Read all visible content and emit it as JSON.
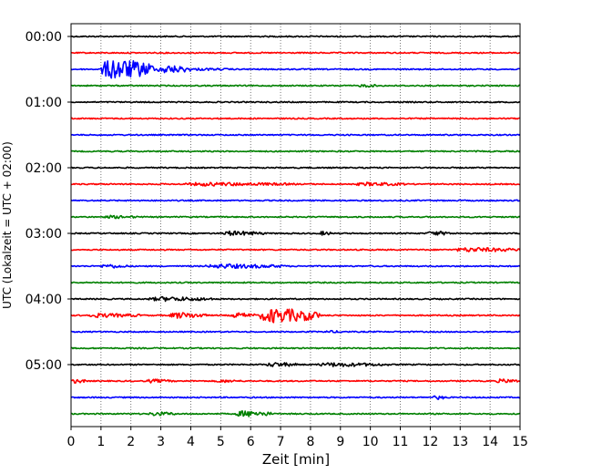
{
  "chart_data": {
    "type": "line",
    "title": "",
    "xlabel": "Zeit  [min]",
    "ylabel": "UTC (Lokalzeit = UTC + 02:00)",
    "xlim": [
      0,
      15
    ],
    "x_ticks": [
      "0",
      "1",
      "2",
      "3",
      "4",
      "5",
      "6",
      "7",
      "8",
      "9",
      "10",
      "11",
      "12",
      "13",
      "14",
      "15"
    ],
    "y_tick_labels": [
      "00:00",
      "01:00",
      "02:00",
      "03:00",
      "04:00",
      "05:00"
    ],
    "grid": "vertical dotted lines at each minute",
    "legend": "none",
    "trace_interval_minutes": 15,
    "trace_colors": [
      "#000000",
      "#ff0000",
      "#0000ff",
      "#008000"
    ],
    "trace_start_times": [
      "00:00",
      "00:15",
      "00:30",
      "00:45",
      "01:00",
      "01:15",
      "01:30",
      "01:45",
      "02:00",
      "02:15",
      "02:30",
      "02:45",
      "03:00",
      "03:15",
      "03:30",
      "03:45",
      "04:00",
      "04:15",
      "04:30",
      "04:45",
      "05:00",
      "05:15",
      "05:30",
      "05:45"
    ],
    "events": [
      {
        "trace": "00:30",
        "start_min": 1.0,
        "end_min": 2.8,
        "amplitude": 1.0
      },
      {
        "trace": "00:30",
        "start_min": 2.9,
        "end_min": 4.0,
        "amplitude": 0.4
      },
      {
        "trace": "00:30",
        "start_min": 4.0,
        "end_min": 5.5,
        "amplitude": 0.12
      },
      {
        "trace": "00:45",
        "start_min": 9.6,
        "end_min": 10.3,
        "amplitude": 0.15
      },
      {
        "trace": "02:15",
        "start_min": 3.7,
        "end_min": 7.5,
        "amplitude": 0.18
      },
      {
        "trace": "02:15",
        "start_min": 9.5,
        "end_min": 11.2,
        "amplitude": 0.18
      },
      {
        "trace": "02:45",
        "start_min": 1.1,
        "end_min": 2.3,
        "amplitude": 0.15
      },
      {
        "trace": "03:00",
        "start_min": 5.0,
        "end_min": 6.5,
        "amplitude": 0.22
      },
      {
        "trace": "03:00",
        "start_min": 8.3,
        "end_min": 8.7,
        "amplitude": 0.2
      },
      {
        "trace": "03:00",
        "start_min": 11.9,
        "end_min": 12.7,
        "amplitude": 0.22
      },
      {
        "trace": "03:15",
        "start_min": 12.8,
        "end_min": 15.0,
        "amplitude": 0.22
      },
      {
        "trace": "03:30",
        "start_min": 1.0,
        "end_min": 1.9,
        "amplitude": 0.2
      },
      {
        "trace": "03:30",
        "start_min": 4.5,
        "end_min": 7.2,
        "amplitude": 0.22
      },
      {
        "trace": "04:00",
        "start_min": 2.6,
        "end_min": 4.8,
        "amplitude": 0.22
      },
      {
        "trace": "04:15",
        "start_min": 0.5,
        "end_min": 2.4,
        "amplitude": 0.2
      },
      {
        "trace": "04:15",
        "start_min": 3.3,
        "end_min": 4.5,
        "amplitude": 0.3
      },
      {
        "trace": "04:15",
        "start_min": 5.3,
        "end_min": 6.2,
        "amplitude": 0.25
      },
      {
        "trace": "04:15",
        "start_min": 6.3,
        "end_min": 8.3,
        "amplitude": 0.7
      },
      {
        "trace": "04:30",
        "start_min": 8.4,
        "end_min": 9.3,
        "amplitude": 0.12
      },
      {
        "trace": "05:00",
        "start_min": 6.5,
        "end_min": 7.6,
        "amplitude": 0.22
      },
      {
        "trace": "05:00",
        "start_min": 8.2,
        "end_min": 10.6,
        "amplitude": 0.2
      },
      {
        "trace": "05:15",
        "start_min": 0.0,
        "end_min": 0.5,
        "amplitude": 0.22
      },
      {
        "trace": "05:15",
        "start_min": 2.5,
        "end_min": 3.4,
        "amplitude": 0.18
      },
      {
        "trace": "05:15",
        "start_min": 4.8,
        "end_min": 5.7,
        "amplitude": 0.15
      },
      {
        "trace": "05:15",
        "start_min": 14.2,
        "end_min": 15.0,
        "amplitude": 0.2
      },
      {
        "trace": "05:30",
        "start_min": 12.1,
        "end_min": 12.6,
        "amplitude": 0.2
      },
      {
        "trace": "05:45",
        "start_min": 2.6,
        "end_min": 3.5,
        "amplitude": 0.2
      },
      {
        "trace": "05:45",
        "start_min": 5.5,
        "end_min": 6.7,
        "amplitude": 0.3
      }
    ]
  }
}
